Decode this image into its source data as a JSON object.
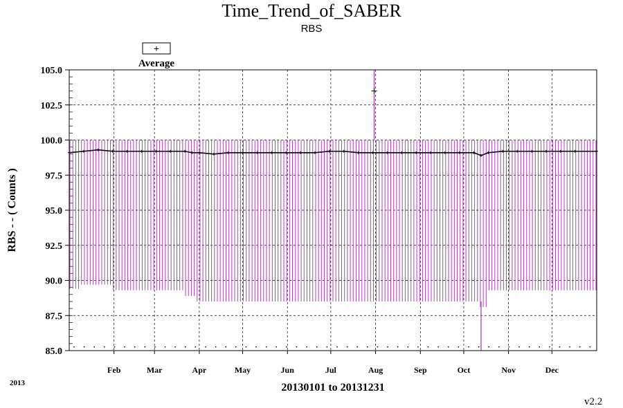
{
  "chart_data": {
    "type": "line",
    "title": "Time_Trend_of_SABER",
    "subtitle": "RBS",
    "ylabel": "RBS  - - ( Counts )",
    "xlabel": "20130101 to 20131231",
    "ylim": [
      85.0,
      105.0
    ],
    "y_ticks": [
      "85.0",
      "87.5",
      "90.0",
      "92.5",
      "95.0",
      "97.5",
      "100.0",
      "102.5",
      "105.0"
    ],
    "x_range_days": [
      0,
      365
    ],
    "month_ticks": [
      {
        "label": "Feb",
        "day": 31
      },
      {
        "label": "Mar",
        "day": 59
      },
      {
        "label": "Apr",
        "day": 90
      },
      {
        "label": "May",
        "day": 120
      },
      {
        "label": "Jun",
        "day": 151
      },
      {
        "label": "Jul",
        "day": 181
      },
      {
        "label": "Aug",
        "day": 212
      },
      {
        "label": "Sep",
        "day": 243
      },
      {
        "label": "Oct",
        "day": 273
      },
      {
        "label": "Nov",
        "day": 304
      },
      {
        "label": "Dec",
        "day": 334
      }
    ],
    "grid": true,
    "legend": {
      "entries": [
        "Average"
      ],
      "position": "top-left",
      "marker": "+"
    },
    "series": [
      {
        "name": "Average",
        "color": "#000000",
        "x": [
          0,
          10,
          20,
          30,
          40,
          50,
          60,
          70,
          80,
          85,
          90,
          100,
          110,
          120,
          130,
          140,
          150,
          160,
          170,
          180,
          190,
          200,
          210,
          220,
          230,
          240,
          250,
          260,
          270,
          280,
          285,
          290,
          300,
          310,
          320,
          330,
          340,
          350,
          365
        ],
        "y": [
          99.1,
          99.2,
          99.3,
          99.2,
          99.2,
          99.2,
          99.2,
          99.2,
          99.2,
          99.1,
          99.1,
          99.0,
          99.1,
          99.1,
          99.1,
          99.1,
          99.1,
          99.1,
          99.1,
          99.2,
          99.2,
          99.1,
          99.1,
          99.1,
          99.1,
          99.1,
          99.1,
          99.1,
          99.1,
          99.1,
          98.9,
          99.1,
          99.2,
          99.2,
          99.2,
          99.2,
          99.2,
          99.2,
          99.2
        ]
      },
      {
        "name": "",
        "color": "#b040c0",
        "kind": "range",
        "max": 100.0,
        "min_by_period": [
          {
            "from": 0,
            "to": 8,
            "min": 89.4
          },
          {
            "from": 8,
            "to": 30,
            "min": 89.7
          },
          {
            "from": 30,
            "to": 80,
            "min": 89.3
          },
          {
            "from": 80,
            "to": 88,
            "min": 88.9
          },
          {
            "from": 88,
            "to": 180,
            "min": 88.5
          },
          {
            "from": 180,
            "to": 283,
            "min": 88.5
          },
          {
            "from": 283,
            "to": 290,
            "min": 88.1
          },
          {
            "from": 290,
            "to": 365,
            "min": 89.3
          }
        ],
        "spikes": [
          {
            "day": 211,
            "min": 100.0,
            "max": 105.0
          },
          {
            "day": 285,
            "min": 85.0,
            "max": 88.5
          }
        ]
      }
    ]
  },
  "legend_label": "Average",
  "legend_marker": "+",
  "year_label": "2013",
  "version": "v2.2"
}
